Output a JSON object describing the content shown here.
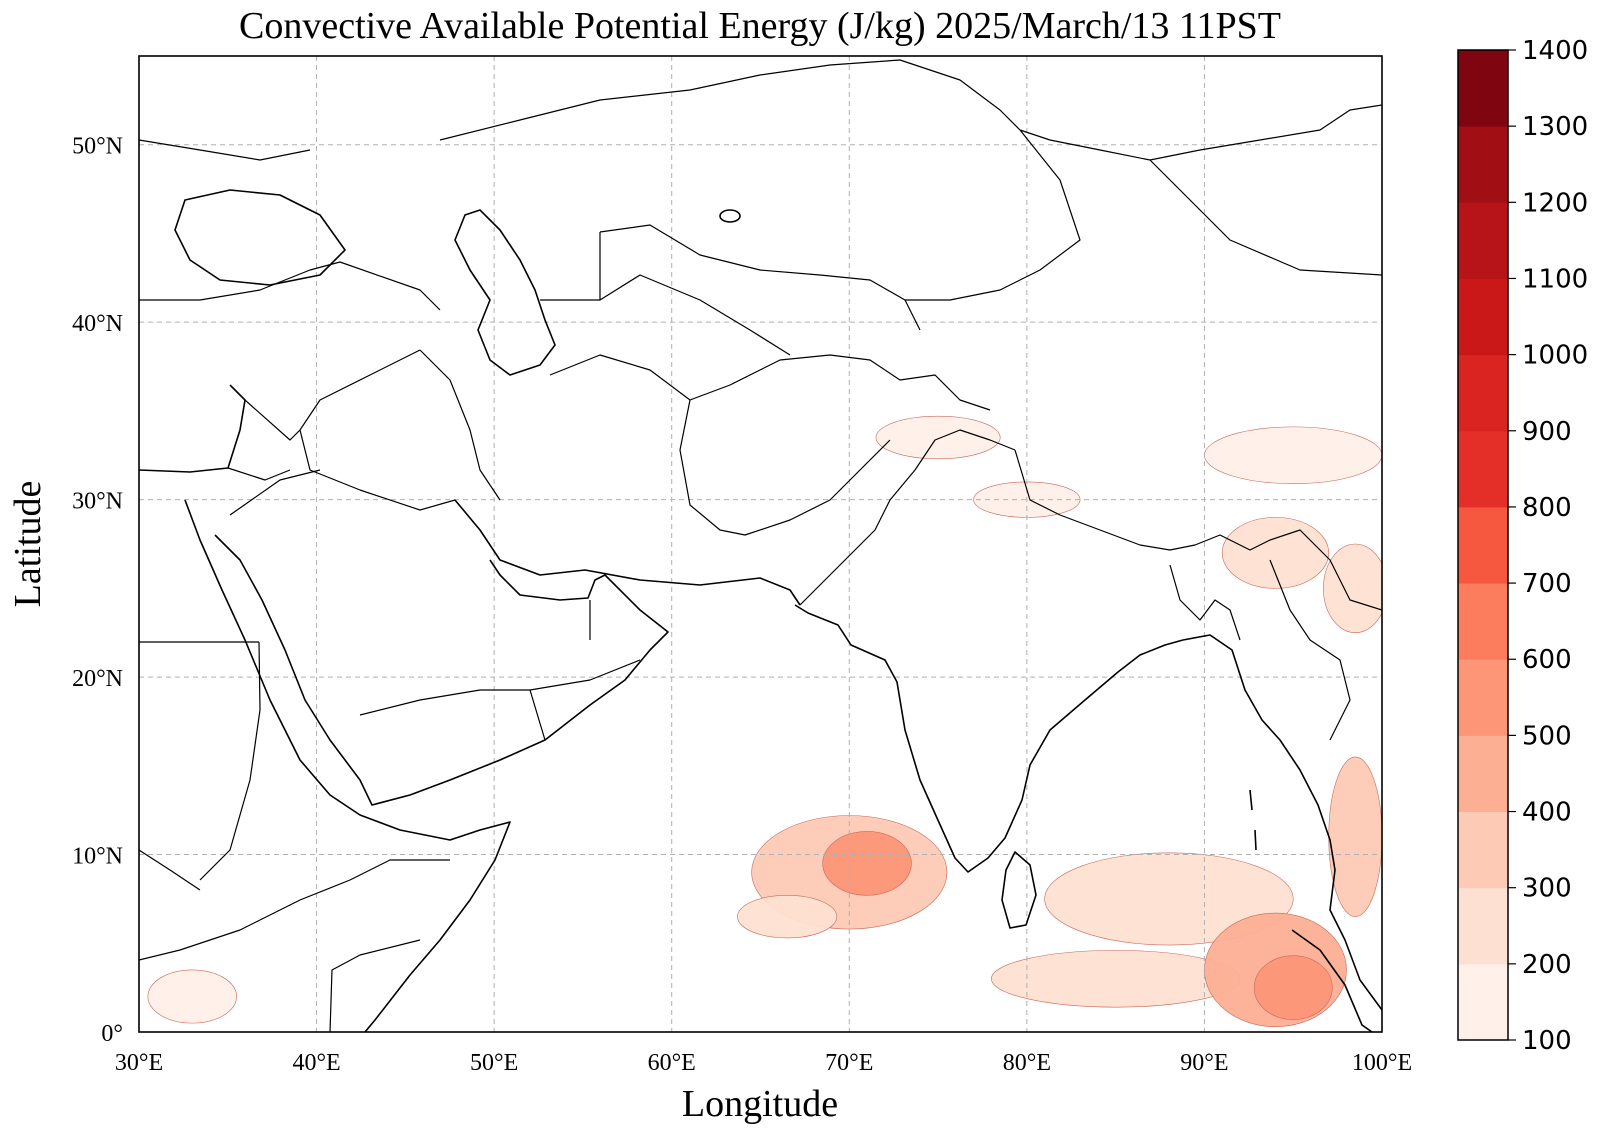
{
  "chart_data": {
    "type": "heatmap",
    "title": "Convective Available Potential Energy (J/kg)  2025/March/13 11PST",
    "xlabel": "Longitude",
    "ylabel": "Latitude",
    "xlim": [
      30,
      100
    ],
    "ylim": [
      0,
      55
    ],
    "x_ticks": [
      30,
      40,
      50,
      60,
      70,
      80,
      90,
      100
    ],
    "x_tick_labels": [
      "30°E",
      "40°E",
      "50°E",
      "60°E",
      "70°E",
      "80°E",
      "90°E",
      "100°E"
    ],
    "y_ticks": [
      0,
      10,
      20,
      30,
      40,
      50
    ],
    "y_tick_labels": [
      "0°",
      "10°N",
      "20°N",
      "30°N",
      "40°N",
      "50°N"
    ],
    "grid": true,
    "colorbar": {
      "levels": [
        100,
        200,
        300,
        400,
        500,
        600,
        700,
        800,
        900,
        1000,
        1100,
        1200,
        1300,
        1400
      ],
      "labels": [
        "100",
        "200",
        "300",
        "400",
        "500",
        "600",
        "700",
        "800",
        "900",
        "1000",
        "1100",
        "1200",
        "1300",
        "1400"
      ],
      "colors": [
        "#fff0e9",
        "#fee0d2",
        "#fdcab5",
        "#fcaf93",
        "#fc9677",
        "#fb7d5d",
        "#f6573f",
        "#e32f27",
        "#d92422",
        "#ca1819",
        "#b61419",
        "#a10f14",
        "#7f0610"
      ]
    },
    "cape_regions": [
      {
        "name": "arabian-sea",
        "lon": 70,
        "lat": 9,
        "rx": 5.5,
        "ry": 3.2,
        "level": 300
      },
      {
        "name": "arabian-sea-core",
        "lon": 71,
        "lat": 9.5,
        "rx": 2.5,
        "ry": 1.8,
        "level": 500
      },
      {
        "name": "arabian-sea-tail",
        "lon": 66.5,
        "lat": 6.5,
        "rx": 2.8,
        "ry": 1.2,
        "level": 200
      },
      {
        "name": "equatorial-band",
        "lon": 85,
        "lat": 3,
        "rx": 7,
        "ry": 1.6,
        "level": 200
      },
      {
        "name": "bay-of-bengal",
        "lon": 88,
        "lat": 7.5,
        "rx": 7,
        "ry": 2.6,
        "level": 200
      },
      {
        "name": "andaman-sea",
        "lon": 94,
        "lat": 3.5,
        "rx": 4,
        "ry": 3.2,
        "level": 400
      },
      {
        "name": "andaman-sea-core",
        "lon": 95,
        "lat": 2.5,
        "rx": 2.2,
        "ry": 1.8,
        "level": 500
      },
      {
        "name": "myanmar-coast",
        "lon": 98.5,
        "lat": 11,
        "rx": 1.5,
        "ry": 4.5,
        "level": 300
      },
      {
        "name": "northeast-india",
        "lon": 94,
        "lat": 27,
        "rx": 3,
        "ry": 2,
        "level": 200
      },
      {
        "name": "yunnan",
        "lon": 98.5,
        "lat": 25,
        "rx": 1.8,
        "ry": 2.5,
        "level": 200
      },
      {
        "name": "tibet-east",
        "lon": 95,
        "lat": 32.5,
        "rx": 5,
        "ry": 1.6,
        "level": 100
      },
      {
        "name": "himalaya-foothills",
        "lon": 80,
        "lat": 30,
        "rx": 3,
        "ry": 1,
        "level": 100
      },
      {
        "name": "kashmir",
        "lon": 75,
        "lat": 33.5,
        "rx": 3.5,
        "ry": 1.2,
        "level": 100
      },
      {
        "name": "east-africa-coast",
        "lon": 33,
        "lat": 2,
        "rx": 2.5,
        "ry": 1.5,
        "level": 100
      }
    ]
  }
}
